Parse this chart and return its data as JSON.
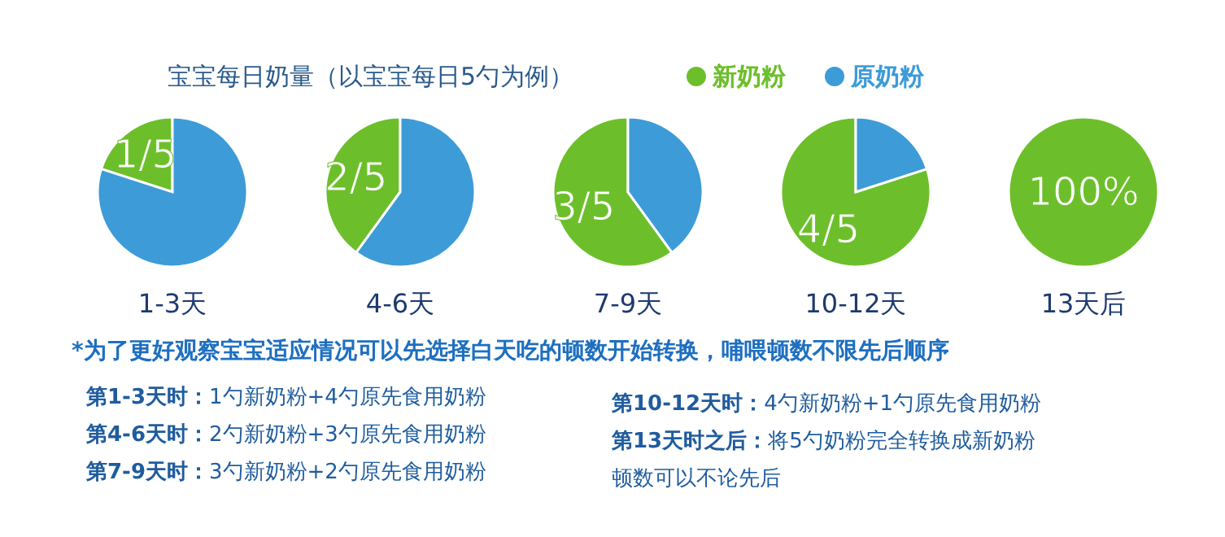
{
  "chart_data": [
    {
      "type": "other",
      "title": "宝宝每日奶量（以宝宝每日5勺为例）",
      "annotations": [
        "*为了更好观察宝宝适应情况可以先选择白天吃的顿数开始转换，哺喂顿数不限先后顺序",
        "第1-3天时：1勺新奶粉+4勺原先食用奶粉",
        "第4-6天时：2勺新奶粉+3勺原先食用奶粉",
        "第7-9天时：3勺新奶粉+2勺原先食用奶粉",
        "第10-12天时：4勺新奶粉+1勺原先食用奶粉",
        "第13天时之后：将5勺奶粉完全转换成新奶粉",
        "顿数可以不论先后"
      ]
    },
    {
      "type": "pie",
      "xlabel": "1-3天",
      "categories": [
        "新奶粉",
        "原奶粉"
      ],
      "values": [
        0.2,
        0.8
      ],
      "colors": [
        "#6cbf2a",
        "#3d9bd8"
      ],
      "value_labels": [
        "1/5",
        null
      ],
      "legend": "top"
    },
    {
      "type": "pie",
      "xlabel": "4-6天",
      "categories": [
        null,
        null
      ],
      "values": [
        0.4,
        0.6
      ],
      "colors": [
        "#6cbf2a",
        "#3d9bd8"
      ],
      "value_labels": [
        "2/5",
        null
      ]
    },
    {
      "type": "pie",
      "xlabel": "7-9天",
      "categories": [
        null,
        null
      ],
      "values": [
        0.6,
        0.4
      ],
      "colors": [
        "#6cbf2a",
        "#3d9bd8"
      ],
      "value_labels": [
        "3/5",
        null
      ]
    },
    {
      "type": "pie",
      "xlabel": "10-12天",
      "categories": [
        null,
        null
      ],
      "values": [
        0.8,
        0.2
      ],
      "colors": [
        "#6cbf2a",
        "#3d9bd8"
      ],
      "value_labels": [
        "4/5",
        null
      ]
    },
    {
      "type": "pie",
      "xlabel": "13天后",
      "categories": [
        null,
        null
      ],
      "values": [
        100,
        0
      ],
      "colors": [
        "#6cbf2a",
        "#3d9bd8"
      ],
      "value_labels": [
        "100%",
        null
      ]
    }
  ]
}
